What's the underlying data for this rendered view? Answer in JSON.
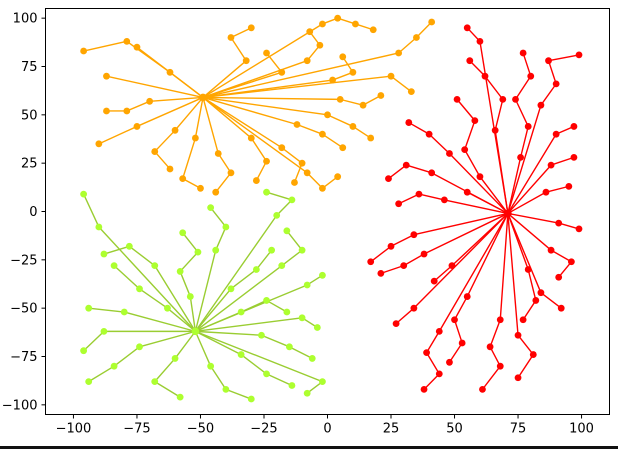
{
  "chart_data": {
    "type": "scatter",
    "title": "",
    "xlabel": "",
    "ylabel": "",
    "xlim": [
      -111,
      111
    ],
    "ylim": [
      -105,
      105
    ],
    "xticks": [
      -100,
      -75,
      -50,
      -25,
      0,
      25,
      50,
      75,
      100
    ],
    "yticks": [
      -100,
      -75,
      -50,
      -25,
      0,
      25,
      50,
      75,
      100
    ],
    "grid": false,
    "legend": "none",
    "description": "Three clusters of points, each connected by lines radiating from a central hub point (cluster centroid): orange cluster centered near (-49, 59), green-yellow cluster centered near (-52, -62), red cluster centered near (71, -1).",
    "clusters": [
      {
        "name": "green",
        "color": "#9ACD32",
        "marker_color": "#ADFF2F",
        "center": [
          -52,
          -62
        ],
        "branches": [
          [
            [
              -63,
              -50
            ],
            [
              -74,
              -40
            ],
            [
              -84,
              -28
            ]
          ],
          [
            [
              -80,
              -52
            ],
            [
              -94,
              -50
            ]
          ],
          [
            [
              -88,
              -62
            ],
            [
              -96,
              -72
            ]
          ],
          [
            [
              -74,
              -70
            ],
            [
              -84,
              -80
            ],
            [
              -94,
              -88
            ]
          ],
          [
            [
              -60,
              -76
            ],
            [
              -68,
              -88
            ],
            [
              -58,
              -96
            ]
          ],
          [
            [
              -46,
              -80
            ],
            [
              -40,
              -92
            ],
            [
              -30,
              -97
            ]
          ],
          [
            [
              -34,
              -74
            ],
            [
              -24,
              -84
            ],
            [
              -14,
              -90
            ]
          ],
          [
            [
              -26,
              -64
            ],
            [
              -15,
              -70
            ],
            [
              -6,
              -76
            ]
          ],
          [
            [
              -34,
              -52
            ],
            [
              -24,
              -46
            ],
            [
              -16,
              -52
            ]
          ],
          [
            [
              -38,
              -40
            ],
            [
              -28,
              -30
            ],
            [
              -22,
              -20
            ]
          ],
          [
            [
              -54,
              -44
            ],
            [
              -58,
              -31
            ],
            [
              -51,
              -21
            ],
            [
              -57,
              -11
            ]
          ],
          [
            [
              -68,
              -28
            ],
            [
              -78,
              -18
            ],
            [
              -88,
              -22
            ]
          ],
          [
            [
              -90,
              -8
            ],
            [
              -96,
              9
            ]
          ],
          [
            [
              -18,
              -28
            ],
            [
              -10,
              -20
            ],
            [
              -16,
              -10
            ]
          ],
          [
            [
              -8,
              -38
            ],
            [
              -2,
              -33
            ]
          ],
          [
            [
              -10,
              -55
            ],
            [
              -4,
              -60
            ]
          ],
          [
            [
              -20,
              -2
            ],
            [
              -14,
              6
            ],
            [
              -24,
              10
            ]
          ],
          [
            [
              -44,
              -20
            ],
            [
              -40,
              -8
            ],
            [
              -46,
              2
            ]
          ],
          [
            [
              -2,
              -88
            ],
            [
              -8,
              -94
            ]
          ]
        ]
      },
      {
        "name": "orange",
        "color": "#FFA500",
        "marker_color": "#FFA500",
        "center": [
          -49,
          59
        ],
        "branches": [
          [
            [
              -62,
              72
            ],
            [
              -79,
              88
            ],
            [
              -96,
              83
            ]
          ],
          [
            [
              -75,
              85
            ]
          ],
          [
            [
              -87,
              70
            ]
          ],
          [
            [
              -70,
              57
            ],
            [
              -79,
              52
            ],
            [
              -87,
              52
            ]
          ],
          [
            [
              -75,
              44
            ],
            [
              -90,
              35
            ]
          ],
          [
            [
              -60,
              42
            ],
            [
              -68,
              31
            ],
            [
              -62,
              22
            ]
          ],
          [
            [
              -52,
              38
            ],
            [
              -57,
              17
            ],
            [
              -50,
              12
            ]
          ],
          [
            [
              -43,
              30
            ],
            [
              -38,
              20
            ],
            [
              -44,
              10
            ]
          ],
          [
            [
              -30,
              38
            ],
            [
              -24,
              26
            ],
            [
              -28,
              16
            ]
          ],
          [
            [
              -18,
              33
            ],
            [
              -10,
              25
            ],
            [
              -13,
              15
            ]
          ],
          [
            [
              -8,
              20
            ],
            [
              -2,
              12
            ],
            [
              4,
              18
            ]
          ],
          [
            [
              -12,
              45
            ],
            [
              -2,
              40
            ],
            [
              6,
              33
            ]
          ],
          [
            [
              0,
              50
            ],
            [
              10,
              44
            ],
            [
              17,
              38
            ]
          ],
          [
            [
              5,
              58
            ],
            [
              14,
              55
            ],
            [
              21,
              60
            ]
          ],
          [
            [
              2,
              68
            ],
            [
              10,
              72
            ],
            [
              6,
              80
            ]
          ],
          [
            [
              -8,
              78
            ],
            [
              -3,
              86
            ],
            [
              -7,
              93
            ]
          ],
          [
            [
              -18,
              72
            ],
            [
              -24,
              82
            ]
          ],
          [
            [
              -32,
              78
            ],
            [
              -38,
              90
            ],
            [
              -30,
              95
            ]
          ],
          [
            [
              -2,
              97
            ],
            [
              4,
              100
            ],
            [
              11,
              97
            ],
            [
              18,
              94
            ]
          ],
          [
            [
              28,
              82
            ],
            [
              35,
              90
            ],
            [
              41,
              98
            ]
          ],
          [
            [
              25,
              70
            ],
            [
              33,
              62
            ]
          ]
        ]
      },
      {
        "name": "red",
        "color": "#FF0000",
        "marker_color": "#FF0000",
        "center": [
          71,
          -1
        ],
        "branches": [
          [
            [
              60,
              18
            ],
            [
              54,
              32
            ],
            [
              58,
              47
            ],
            [
              51,
              58
            ]
          ],
          [
            [
              66,
              42
            ],
            [
              69,
              58
            ],
            [
              62,
              70
            ],
            [
              56,
              78
            ]
          ],
          [
            [
              60,
              88
            ],
            [
              55,
              95
            ]
          ],
          [
            [
              76,
              28
            ],
            [
              79,
              44
            ],
            [
              74,
              58
            ],
            [
              80,
              70
            ],
            [
              77,
              82
            ]
          ],
          [
            [
              84,
              55
            ],
            [
              90,
              66
            ],
            [
              87,
              78
            ],
            [
              99,
              81
            ]
          ],
          [
            [
              90,
              40
            ],
            [
              97,
              44
            ]
          ],
          [
            [
              88,
              24
            ],
            [
              97,
              28
            ]
          ],
          [
            [
              86,
              10
            ],
            [
              95,
              13
            ]
          ],
          [
            [
              91,
              -6
            ],
            [
              99,
              -9
            ]
          ],
          [
            [
              88,
              -20
            ],
            [
              96,
              -26
            ],
            [
              91,
              -34
            ]
          ],
          [
            [
              84,
              -42
            ],
            [
              92,
              -50
            ]
          ],
          [
            [
              79,
              -30
            ],
            [
              82,
              -46
            ],
            [
              77,
              -56
            ]
          ],
          [
            [
              75,
              -64
            ],
            [
              81,
              -74
            ],
            [
              75,
              -86
            ]
          ],
          [
            [
              68,
              -56
            ],
            [
              64,
              -70
            ],
            [
              68,
              -80
            ],
            [
              61,
              -92
            ]
          ],
          [
            [
              55,
              -44
            ],
            [
              50,
              -56
            ],
            [
              53,
              -68
            ],
            [
              48,
              -78
            ]
          ],
          [
            [
              44,
              -62
            ],
            [
              39,
              -73
            ],
            [
              44,
              -84
            ],
            [
              38,
              -92
            ]
          ],
          [
            [
              34,
              -50
            ],
            [
              27,
              -58
            ]
          ],
          [
            [
              49,
              -28
            ],
            [
              42,
              -36
            ]
          ],
          [
            [
              38,
              -22
            ],
            [
              30,
              -28
            ],
            [
              21,
              -32
            ]
          ],
          [
            [
              34,
              -12
            ],
            [
              25,
              -18
            ],
            [
              17,
              -26
            ]
          ],
          [
            [
              46,
              6
            ],
            [
              36,
              9
            ],
            [
              28,
              4
            ]
          ],
          [
            [
              41,
              20
            ],
            [
              31,
              24
            ],
            [
              24,
              17
            ]
          ],
          [
            [
              48,
              30
            ],
            [
              40,
              40
            ],
            [
              32,
              46
            ]
          ],
          [
            [
              55,
              10
            ]
          ]
        ]
      }
    ]
  }
}
